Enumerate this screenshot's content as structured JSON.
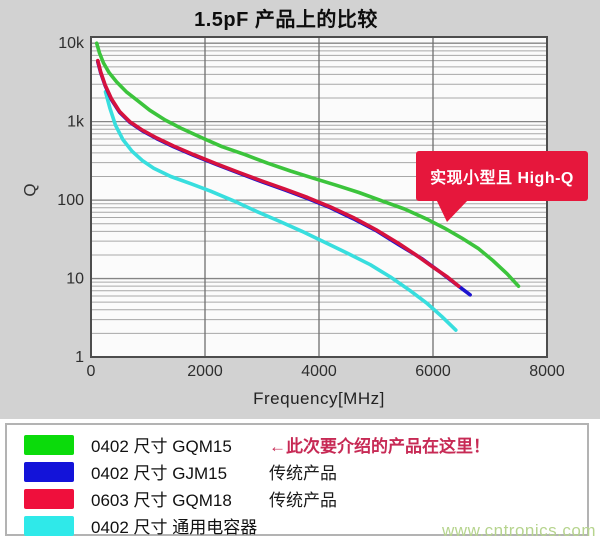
{
  "title": "1.5pF 产品上的比较",
  "watermark": "www.cntronics.com",
  "callout": {
    "text": "实现小型且 High-Q",
    "bg": "#e6173c",
    "text_color": "#ffffff"
  },
  "chart_data": {
    "type": "line",
    "title": "1.5pF 产品上的比较",
    "xlabel": "Frequency[MHz]",
    "ylabel": "Q",
    "x_scale": "linear",
    "y_scale": "log",
    "xlim": [
      0,
      8000
    ],
    "ylim_log": [
      1,
      12000
    ],
    "xticks": [
      0,
      2000,
      4000,
      6000,
      8000
    ],
    "ytick_values": [
      1,
      10,
      100,
      1000,
      10000
    ],
    "ytick_labels": [
      "1",
      "10",
      "100",
      "1k",
      "10k"
    ],
    "grid": "on",
    "legend_position": "below",
    "series": [
      {
        "name": "0402 尺寸 GQM15",
        "color": "#3cc43c",
        "points": [
          [
            100,
            10000
          ],
          [
            150,
            7500
          ],
          [
            220,
            5600
          ],
          [
            320,
            4200
          ],
          [
            450,
            3200
          ],
          [
            620,
            2400
          ],
          [
            820,
            1850
          ],
          [
            1030,
            1400
          ],
          [
            1300,
            1050
          ],
          [
            1600,
            810
          ],
          [
            1950,
            620
          ],
          [
            2300,
            480
          ],
          [
            2700,
            380
          ],
          [
            3100,
            295
          ],
          [
            3500,
            235
          ],
          [
            3900,
            190
          ],
          [
            4300,
            155
          ],
          [
            4700,
            125
          ],
          [
            5100,
            98
          ],
          [
            5500,
            77
          ],
          [
            5900,
            57
          ],
          [
            6200,
            44
          ],
          [
            6500,
            33
          ],
          [
            6800,
            24
          ],
          [
            7050,
            17
          ],
          [
            7300,
            11.5
          ],
          [
            7500,
            8
          ]
        ]
      },
      {
        "name": "0402 尺寸 GJM15",
        "color": "#1c13cf",
        "points": [
          [
            120,
            5800
          ],
          [
            170,
            4200
          ],
          [
            250,
            2850
          ],
          [
            360,
            1900
          ],
          [
            500,
            1320
          ],
          [
            680,
            980
          ],
          [
            900,
            765
          ],
          [
            1150,
            608
          ],
          [
            1450,
            480
          ],
          [
            1800,
            372
          ],
          [
            2200,
            284
          ],
          [
            2600,
            220
          ],
          [
            3000,
            171
          ],
          [
            3400,
            135
          ],
          [
            3800,
            105
          ],
          [
            4200,
            80
          ],
          [
            4600,
            58
          ],
          [
            5000,
            41
          ],
          [
            5400,
            27
          ],
          [
            5800,
            18
          ],
          [
            6100,
            12.5
          ],
          [
            6400,
            8.5
          ],
          [
            6650,
            6.2
          ]
        ]
      },
      {
        "name": "0603 尺寸 GQM18",
        "color": "#d6123e",
        "points": [
          [
            120,
            6000
          ],
          [
            170,
            4300
          ],
          [
            250,
            2900
          ],
          [
            360,
            1950
          ],
          [
            500,
            1350
          ],
          [
            680,
            1000
          ],
          [
            900,
            780
          ],
          [
            1150,
            620
          ],
          [
            1450,
            490
          ],
          [
            1800,
            380
          ],
          [
            2200,
            290
          ],
          [
            2600,
            225
          ],
          [
            3000,
            175
          ],
          [
            3400,
            138
          ],
          [
            3800,
            108
          ],
          [
            4200,
            82
          ],
          [
            4600,
            60
          ],
          [
            5000,
            42
          ],
          [
            5400,
            28
          ],
          [
            5700,
            20
          ],
          [
            6000,
            14
          ],
          [
            6250,
            10.5
          ],
          [
            6450,
            8
          ]
        ]
      },
      {
        "name": "0402 尺寸 通用电容器",
        "color": "#38dede",
        "points": [
          [
            255,
            2400
          ],
          [
            330,
            1500
          ],
          [
            430,
            900
          ],
          [
            560,
            590
          ],
          [
            720,
            420
          ],
          [
            900,
            320
          ],
          [
            1100,
            255
          ],
          [
            1400,
            200
          ],
          [
            1750,
            162
          ],
          [
            2100,
            130
          ],
          [
            2500,
            98
          ],
          [
            2900,
            72
          ],
          [
            3300,
            54
          ],
          [
            3700,
            40
          ],
          [
            4100,
            29
          ],
          [
            4500,
            21
          ],
          [
            4900,
            15
          ],
          [
            5250,
            10.5
          ],
          [
            5600,
            7
          ],
          [
            5900,
            4.8
          ],
          [
            6150,
            3.3
          ],
          [
            6400,
            2.2
          ]
        ]
      }
    ]
  },
  "legend": {
    "items": [
      {
        "swatch": "#0bdb0b",
        "label": "0402 尺寸 GQM15",
        "note": "←此次要介绍的产品在这里！",
        "note_color": "#c72a55",
        "note_bold": true
      },
      {
        "swatch": "#1313d9",
        "label": "0402 尺寸 GJM15",
        "note": "传统产品",
        "note_color": "#1a1a1a",
        "note_bold": false
      },
      {
        "swatch": "#ef0f3c",
        "label": "0603 尺寸 GQM18",
        "note": "传统产品",
        "note_color": "#1a1a1a",
        "note_bold": false
      },
      {
        "swatch": "#2fe9e9",
        "label": "0402 尺寸 通用电容器",
        "note": "",
        "note_color": "#1a1a1a",
        "note_bold": false
      }
    ]
  }
}
